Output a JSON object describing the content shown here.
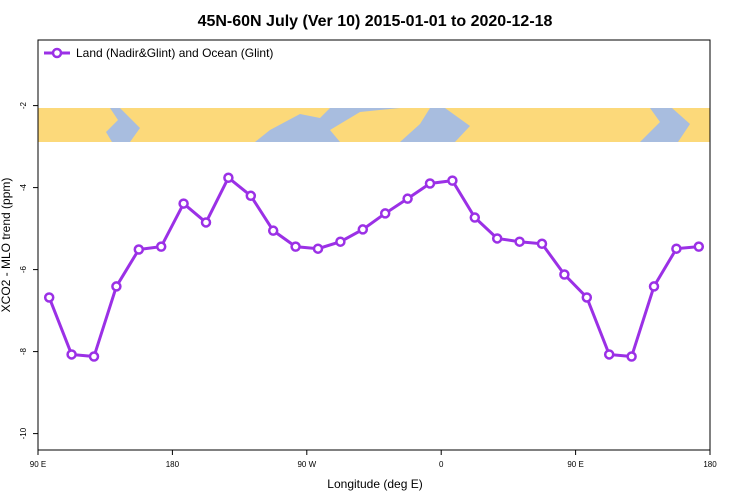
{
  "chart_data": {
    "type": "line",
    "title": "45N-60N July (Ver 10)   2015-01-01 to 2020-12-18",
    "x_label": "Longitude (deg E)",
    "y_label": "XCO2 - MLO trend (ppm)",
    "x": [
      97.5,
      112.5,
      127.5,
      142.5,
      157.5,
      172.5,
      187.5,
      202.5,
      217.5,
      232.5,
      247.5,
      262.5,
      277.5,
      292.5,
      307.5,
      322.5,
      337.5,
      352.5,
      367.5,
      382.5,
      397.5,
      412.5,
      427.5,
      442.5,
      457.5,
      472.5,
      487.5,
      502.5,
      517.5,
      532.5
    ],
    "series": [
      {
        "name": "Land (Nadir&Glint) and Ocean (Glint)",
        "color": "#9b30e6",
        "values": [
          -6.68,
          -8.07,
          -8.12,
          -6.41,
          -5.51,
          -5.44,
          -4.39,
          -4.85,
          -3.76,
          -4.2,
          -5.05,
          -5.44,
          -5.49,
          -5.32,
          -5.02,
          -4.63,
          -4.27,
          -3.9,
          -3.83,
          -4.73,
          -5.24,
          -5.32,
          -5.37,
          -6.12,
          -6.68,
          -8.07,
          -8.12,
          -6.41,
          -5.49,
          -5.44
        ]
      }
    ],
    "xlim": [
      90,
      540
    ],
    "xticks": [
      {
        "value": 90,
        "label": "90 E"
      },
      {
        "value": 180,
        "label": "180"
      },
      {
        "value": 270,
        "label": "90 W"
      },
      {
        "value": 360,
        "label": "0"
      },
      {
        "value": 450,
        "label": "90 E"
      },
      {
        "value": 540,
        "label": "180"
      }
    ],
    "ylim": [
      -10.4,
      -0.4
    ],
    "yticks": [
      -10,
      -8,
      -6,
      -4,
      -2
    ],
    "legend": "top-left"
  }
}
